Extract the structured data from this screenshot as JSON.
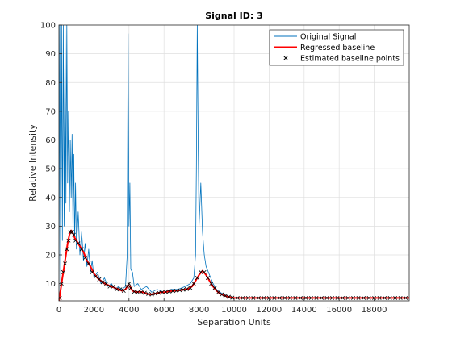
{
  "chart_data": {
    "type": "line",
    "title": "Signal ID: 3",
    "xlabel": "Separation Units",
    "ylabel": "Relative Intensity",
    "xlim": [
      0,
      20000
    ],
    "ylim": [
      4,
      100
    ],
    "xticks": [
      0,
      2000,
      4000,
      6000,
      8000,
      10000,
      12000,
      14000,
      16000,
      18000
    ],
    "xtick_labels": [
      "0",
      "2000",
      "4000",
      "6000",
      "8000",
      "10000",
      "12000",
      "14000",
      "16000",
      "18000"
    ],
    "yticks": [
      10,
      20,
      30,
      40,
      50,
      60,
      70,
      80,
      90,
      100
    ],
    "ytick_labels": [
      "10",
      "20",
      "30",
      "40",
      "50",
      "60",
      "70",
      "80",
      "90",
      "100"
    ],
    "grid": true,
    "legend_position": "top-right",
    "series": [
      {
        "name": "Original Signal",
        "kind": "line",
        "color": "#0072BD",
        "points": [
          [
            0,
            4
          ],
          [
            50,
            100
          ],
          [
            100,
            10
          ],
          [
            150,
            100
          ],
          [
            200,
            25
          ],
          [
            250,
            100
          ],
          [
            300,
            30
          ],
          [
            350,
            100
          ],
          [
            400,
            38
          ],
          [
            450,
            100
          ],
          [
            500,
            45
          ],
          [
            550,
            70
          ],
          [
            600,
            35
          ],
          [
            650,
            60
          ],
          [
            700,
            40
          ],
          [
            750,
            62
          ],
          [
            800,
            30
          ],
          [
            850,
            55
          ],
          [
            900,
            25
          ],
          [
            950,
            45
          ],
          [
            1000,
            22
          ],
          [
            1100,
            35
          ],
          [
            1200,
            20
          ],
          [
            1300,
            28
          ],
          [
            1400,
            18
          ],
          [
            1500,
            24
          ],
          [
            1600,
            16
          ],
          [
            1700,
            22
          ],
          [
            1800,
            14
          ],
          [
            1900,
            18
          ],
          [
            2000,
            12
          ],
          [
            2200,
            14
          ],
          [
            2400,
            10
          ],
          [
            2600,
            12
          ],
          [
            2800,
            9
          ],
          [
            3000,
            10
          ],
          [
            3200,
            8
          ],
          [
            3400,
            9
          ],
          [
            3600,
            8
          ],
          [
            3800,
            9
          ],
          [
            3900,
            20
          ],
          [
            3950,
            97
          ],
          [
            4000,
            30
          ],
          [
            4050,
            45
          ],
          [
            4100,
            15
          ],
          [
            4200,
            14
          ],
          [
            4300,
            9
          ],
          [
            4500,
            10
          ],
          [
            4700,
            8
          ],
          [
            5000,
            9
          ],
          [
            5300,
            7
          ],
          [
            5600,
            8
          ],
          [
            6000,
            7
          ],
          [
            6400,
            8
          ],
          [
            6800,
            8
          ],
          [
            7200,
            9
          ],
          [
            7500,
            10
          ],
          [
            7700,
            12
          ],
          [
            7800,
            20
          ],
          [
            7850,
            50
          ],
          [
            7900,
            100
          ],
          [
            7950,
            60
          ],
          [
            8000,
            30
          ],
          [
            8100,
            45
          ],
          [
            8200,
            28
          ],
          [
            8300,
            20
          ],
          [
            8400,
            16
          ],
          [
            8600,
            13
          ],
          [
            8800,
            10
          ],
          [
            9000,
            8
          ],
          [
            9200,
            7
          ],
          [
            9500,
            6
          ],
          [
            10000,
            5
          ],
          [
            11000,
            5
          ],
          [
            12000,
            5
          ],
          [
            13000,
            5
          ],
          [
            14000,
            5
          ],
          [
            15000,
            5
          ],
          [
            16000,
            5
          ],
          [
            17000,
            5
          ],
          [
            18000,
            5
          ],
          [
            19000,
            5
          ],
          [
            20000,
            5
          ]
        ]
      },
      {
        "name": "Regressed baseline",
        "kind": "line",
        "color": "#FF0000",
        "points": [
          [
            0,
            4
          ],
          [
            100,
            8
          ],
          [
            200,
            12
          ],
          [
            300,
            16
          ],
          [
            400,
            20
          ],
          [
            500,
            24
          ],
          [
            600,
            27
          ],
          [
            700,
            28.5
          ],
          [
            800,
            27.5
          ],
          [
            900,
            26
          ],
          [
            1000,
            25
          ],
          [
            1200,
            23
          ],
          [
            1400,
            21
          ],
          [
            1600,
            18
          ],
          [
            1800,
            16
          ],
          [
            2000,
            13.5
          ],
          [
            2200,
            12
          ],
          [
            2400,
            11
          ],
          [
            2600,
            10
          ],
          [
            2800,
            9.5
          ],
          [
            3000,
            9
          ],
          [
            3200,
            8.5
          ],
          [
            3400,
            8
          ],
          [
            3600,
            7.5
          ],
          [
            3800,
            8
          ],
          [
            3950,
            9.5
          ],
          [
            4050,
            9
          ],
          [
            4200,
            7.5
          ],
          [
            4400,
            7
          ],
          [
            4600,
            7.2
          ],
          [
            4800,
            7
          ],
          [
            5000,
            6.5
          ],
          [
            5200,
            6.2
          ],
          [
            5400,
            6.4
          ],
          [
            5600,
            6.6
          ],
          [
            5800,
            7
          ],
          [
            6000,
            7
          ],
          [
            6200,
            7.2
          ],
          [
            6400,
            7.4
          ],
          [
            6600,
            7.5
          ],
          [
            6800,
            7.6
          ],
          [
            7000,
            7.8
          ],
          [
            7200,
            8
          ],
          [
            7400,
            8.2
          ],
          [
            7600,
            9
          ],
          [
            7800,
            11
          ],
          [
            8000,
            13
          ],
          [
            8200,
            14.5
          ],
          [
            8400,
            13
          ],
          [
            8600,
            11
          ],
          [
            8800,
            9
          ],
          [
            9000,
            7.5
          ],
          [
            9200,
            6.5
          ],
          [
            9400,
            6
          ],
          [
            9600,
            5.5
          ],
          [
            10000,
            5
          ],
          [
            11000,
            5
          ],
          [
            12000,
            5
          ],
          [
            13000,
            5
          ],
          [
            14000,
            5
          ],
          [
            15000,
            5
          ],
          [
            16000,
            5
          ],
          [
            17000,
            5
          ],
          [
            18000,
            5
          ],
          [
            19000,
            5
          ],
          [
            20000,
            5
          ]
        ]
      },
      {
        "name": "Estimated baseline points",
        "kind": "scatter",
        "marker": "x",
        "color": "#000000",
        "points": [
          [
            50,
            5
          ],
          [
            150,
            10
          ],
          [
            250,
            14
          ],
          [
            350,
            17
          ],
          [
            450,
            22
          ],
          [
            550,
            25
          ],
          [
            650,
            28
          ],
          [
            750,
            28
          ],
          [
            850,
            27
          ],
          [
            950,
            25
          ],
          [
            1100,
            24
          ],
          [
            1300,
            22
          ],
          [
            1500,
            19
          ],
          [
            1700,
            17
          ],
          [
            1900,
            14
          ],
          [
            2100,
            12.5
          ],
          [
            2300,
            11.5
          ],
          [
            2500,
            10.5
          ],
          [
            2700,
            10
          ],
          [
            2900,
            9
          ],
          [
            3100,
            9
          ],
          [
            3300,
            8
          ],
          [
            3500,
            8
          ],
          [
            3700,
            7.5
          ],
          [
            3900,
            9
          ],
          [
            4000,
            10
          ],
          [
            4100,
            8.5
          ],
          [
            4300,
            7.2
          ],
          [
            4500,
            7
          ],
          [
            4700,
            7
          ],
          [
            4900,
            6.8
          ],
          [
            5100,
            6.4
          ],
          [
            5300,
            6.2
          ],
          [
            5500,
            6.5
          ],
          [
            5700,
            6.8
          ],
          [
            5900,
            7
          ],
          [
            6100,
            7.1
          ],
          [
            6300,
            7.3
          ],
          [
            6500,
            7.4
          ],
          [
            6700,
            7.5
          ],
          [
            6900,
            7.7
          ],
          [
            7100,
            7.9
          ],
          [
            7300,
            8.1
          ],
          [
            7500,
            8.5
          ],
          [
            7700,
            10
          ],
          [
            7900,
            12
          ],
          [
            8100,
            14
          ],
          [
            8300,
            14
          ],
          [
            8500,
            12
          ],
          [
            8700,
            10
          ],
          [
            8900,
            8.5
          ],
          [
            9100,
            7
          ],
          [
            9300,
            6.2
          ],
          [
            9500,
            5.8
          ],
          [
            9700,
            5.4
          ],
          [
            9900,
            5.1
          ],
          [
            10200,
            5
          ],
          [
            10500,
            5
          ],
          [
            10800,
            5
          ],
          [
            11100,
            5
          ],
          [
            11400,
            5
          ],
          [
            11700,
            5
          ],
          [
            12000,
            5
          ],
          [
            12300,
            5
          ],
          [
            12600,
            5
          ],
          [
            12900,
            5
          ],
          [
            13200,
            5
          ],
          [
            13500,
            5
          ],
          [
            13800,
            5
          ],
          [
            14100,
            5
          ],
          [
            14400,
            5
          ],
          [
            14700,
            5
          ],
          [
            15000,
            5
          ],
          [
            15300,
            5
          ],
          [
            15600,
            5
          ],
          [
            15900,
            5
          ],
          [
            16200,
            5
          ],
          [
            16500,
            5
          ],
          [
            16800,
            5
          ],
          [
            17100,
            5
          ],
          [
            17400,
            5
          ],
          [
            17700,
            5
          ],
          [
            18000,
            5
          ],
          [
            18300,
            5
          ],
          [
            18600,
            5
          ],
          [
            18900,
            5
          ],
          [
            19200,
            5
          ],
          [
            19500,
            5
          ],
          [
            19800,
            5
          ]
        ]
      }
    ]
  }
}
